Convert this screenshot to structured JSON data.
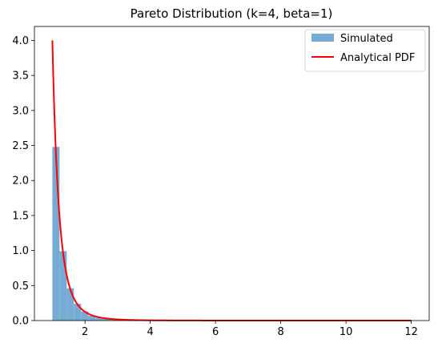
{
  "chart_data": {
    "type": "bar",
    "title": "Pareto Distribution (k=4, beta=1)",
    "xlabel": "",
    "ylabel": "",
    "xlim": [
      0.45,
      12.55
    ],
    "ylim": [
      0,
      4.2
    ],
    "xticks": [
      2,
      4,
      6,
      8,
      10,
      12
    ],
    "xtick_labels": [
      "2",
      "4",
      "6",
      "8",
      "10",
      "12"
    ],
    "yticks": [
      0.0,
      0.5,
      1.0,
      1.5,
      2.0,
      2.5,
      3.0,
      3.5,
      4.0
    ],
    "ytick_labels": [
      "0.0",
      "0.5",
      "1.0",
      "1.5",
      "2.0",
      "2.5",
      "3.0",
      "3.5",
      "4.0"
    ],
    "grid": false,
    "legend_position": "top-right",
    "series": [
      {
        "name": "Simulated",
        "kind": "histogram",
        "color": "#76acd4",
        "bin_edges": [
          1.0,
          1.22,
          1.44,
          1.66,
          1.88,
          2.1,
          2.32,
          2.54,
          2.76,
          2.98,
          3.2
        ],
        "values": [
          2.48,
          0.99,
          0.46,
          0.24,
          0.13,
          0.07,
          0.04,
          0.03,
          0.02,
          0.01
        ]
      },
      {
        "name": "Analytical PDF",
        "kind": "line",
        "color": "#ff0000",
        "formula": "4 / x^5",
        "x_range": [
          1.0,
          12.0
        ]
      }
    ]
  }
}
